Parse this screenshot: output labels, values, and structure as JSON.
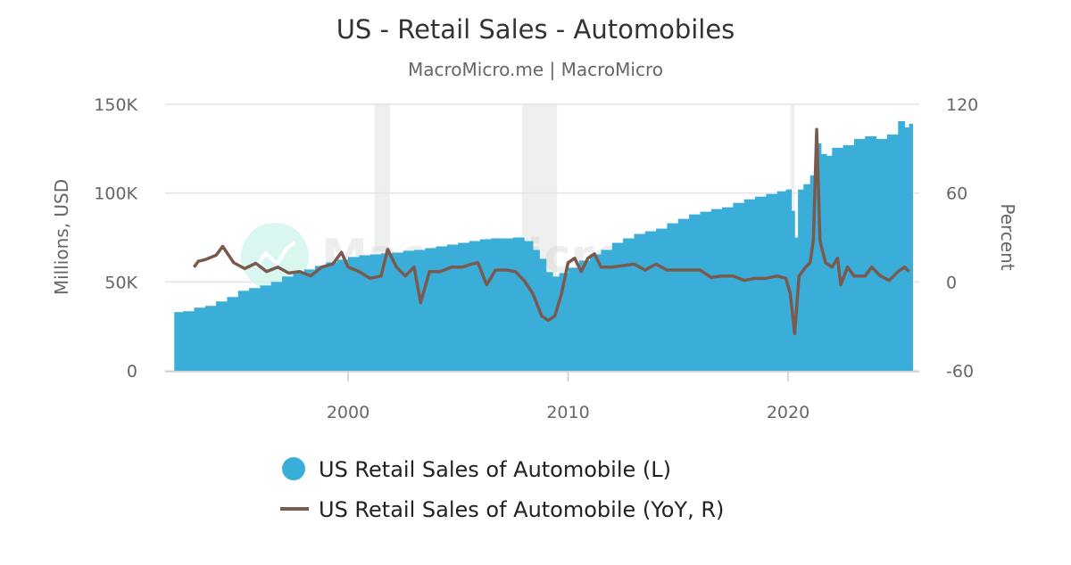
{
  "chart_data": {
    "type": "bar+line",
    "title": "US - Retail Sales - Automobiles",
    "subtitle": "MacroMicro.me | MacroMicro",
    "watermark": "MacroMicro",
    "ylabel_left": "Millions, USD",
    "ylabel_right": "Percent",
    "xlim": [
      1991.8,
      2025.9
    ],
    "ylim_left": [
      0,
      150000
    ],
    "ylim_right": [
      -60,
      120
    ],
    "x_ticks": [
      {
        "v": 2000,
        "label": "2000"
      },
      {
        "v": 2010,
        "label": "2010"
      },
      {
        "v": 2020,
        "label": "2020"
      }
    ],
    "y_ticks_left": [
      {
        "v": 0,
        "label": "0"
      },
      {
        "v": 50000,
        "label": "50K"
      },
      {
        "v": 100000,
        "label": "100K"
      },
      {
        "v": 150000,
        "label": "150K"
      }
    ],
    "y_ticks_right": [
      {
        "v": -60,
        "label": "-60"
      },
      {
        "v": 0,
        "label": "0"
      },
      {
        "v": 60,
        "label": "60"
      },
      {
        "v": 120,
        "label": "120"
      }
    ],
    "grid": true,
    "legend_position": "bottom",
    "recessions": [
      [
        2001.2,
        2001.9
      ],
      [
        2007.9,
        2009.5
      ],
      [
        2020.1,
        2020.3
      ]
    ],
    "colors": {
      "bars": "#3aaed8",
      "line": "#7a5a4e",
      "recession": "#eef0ef",
      "watermark_circle": "#d3f5ee"
    },
    "series": [
      {
        "name": "US Retail Sales of Automobile (L)",
        "kind": "bar",
        "axis": "left",
        "points": [
          [
            1992.1,
            33000
          ],
          [
            1992.5,
            33500
          ],
          [
            1993.0,
            35500
          ],
          [
            1993.5,
            36500
          ],
          [
            1994.0,
            39000
          ],
          [
            1994.5,
            41500
          ],
          [
            1995.0,
            45000
          ],
          [
            1995.5,
            46500
          ],
          [
            1996.0,
            48000
          ],
          [
            1996.5,
            50000
          ],
          [
            1997.0,
            53000
          ],
          [
            1997.5,
            55000
          ],
          [
            1998.0,
            57000
          ],
          [
            1998.5,
            59000
          ],
          [
            1999.0,
            61000
          ],
          [
            1999.5,
            62500
          ],
          [
            2000.0,
            64000
          ],
          [
            2000.5,
            65000
          ],
          [
            2001.0,
            65500
          ],
          [
            2001.5,
            66000
          ],
          [
            2002.0,
            66500
          ],
          [
            2002.5,
            67500
          ],
          [
            2003.0,
            68000
          ],
          [
            2003.5,
            69000
          ],
          [
            2004.0,
            70000
          ],
          [
            2004.5,
            71000
          ],
          [
            2005.0,
            72000
          ],
          [
            2005.5,
            73000
          ],
          [
            2006.0,
            74000
          ],
          [
            2006.5,
            74500
          ],
          [
            2007.0,
            74500
          ],
          [
            2007.5,
            75000
          ],
          [
            2008.0,
            73000
          ],
          [
            2008.4,
            68000
          ],
          [
            2008.7,
            63000
          ],
          [
            2009.0,
            55500
          ],
          [
            2009.3,
            53000
          ],
          [
            2009.6,
            55000
          ],
          [
            2010.0,
            58000
          ],
          [
            2010.5,
            62000
          ],
          [
            2011.0,
            65500
          ],
          [
            2011.5,
            68000
          ],
          [
            2012.0,
            72000
          ],
          [
            2012.5,
            74500
          ],
          [
            2013.0,
            77000
          ],
          [
            2013.5,
            78500
          ],
          [
            2014.0,
            80000
          ],
          [
            2014.5,
            83000
          ],
          [
            2015.0,
            85500
          ],
          [
            2015.5,
            88000
          ],
          [
            2016.0,
            89500
          ],
          [
            2016.5,
            91000
          ],
          [
            2017.0,
            92000
          ],
          [
            2017.5,
            94500
          ],
          [
            2018.0,
            96500
          ],
          [
            2018.5,
            98000
          ],
          [
            2019.0,
            99500
          ],
          [
            2019.5,
            101000
          ],
          [
            2019.9,
            102000
          ],
          [
            2020.15,
            90000
          ],
          [
            2020.3,
            75000
          ],
          [
            2020.45,
            102000
          ],
          [
            2020.7,
            105000
          ],
          [
            2021.0,
            110000
          ],
          [
            2021.25,
            128000
          ],
          [
            2021.5,
            122000
          ],
          [
            2021.75,
            121000
          ],
          [
            2022.0,
            125500
          ],
          [
            2022.5,
            127000
          ],
          [
            2023.0,
            130500
          ],
          [
            2023.5,
            132000
          ],
          [
            2024.0,
            130500
          ],
          [
            2024.5,
            133000
          ],
          [
            2025.0,
            140500
          ],
          [
            2025.3,
            137000
          ],
          [
            2025.5,
            139000
          ]
        ]
      },
      {
        "name": "US Retail Sales of Automobile (YoY, R)",
        "kind": "line",
        "axis": "right",
        "points": [
          [
            1993.0,
            10
          ],
          [
            1993.2,
            14
          ],
          [
            1993.5,
            15
          ],
          [
            1994.0,
            18
          ],
          [
            1994.3,
            24
          ],
          [
            1994.8,
            13
          ],
          [
            1995.3,
            9
          ],
          [
            1995.8,
            12.6
          ],
          [
            1996.3,
            7
          ],
          [
            1996.8,
            10
          ],
          [
            1997.3,
            6
          ],
          [
            1997.8,
            7
          ],
          [
            1998.3,
            4
          ],
          [
            1998.8,
            10
          ],
          [
            1999.3,
            12
          ],
          [
            1999.7,
            20
          ],
          [
            2000.0,
            10
          ],
          [
            2000.5,
            7
          ],
          [
            2001.0,
            2.4
          ],
          [
            2001.5,
            4
          ],
          [
            2001.8,
            22
          ],
          [
            2002.2,
            10
          ],
          [
            2002.6,
            4
          ],
          [
            2003.0,
            10
          ],
          [
            2003.3,
            -14
          ],
          [
            2003.7,
            7
          ],
          [
            2004.2,
            7
          ],
          [
            2004.7,
            10
          ],
          [
            2005.2,
            10
          ],
          [
            2005.6,
            12
          ],
          [
            2005.9,
            13
          ],
          [
            2006.3,
            -2
          ],
          [
            2006.7,
            8
          ],
          [
            2007.2,
            8
          ],
          [
            2007.6,
            7
          ],
          [
            2008.0,
            1
          ],
          [
            2008.4,
            -8
          ],
          [
            2008.8,
            -23
          ],
          [
            2009.1,
            -26
          ],
          [
            2009.4,
            -23
          ],
          [
            2009.7,
            -8
          ],
          [
            2010.0,
            13
          ],
          [
            2010.3,
            16
          ],
          [
            2010.6,
            7
          ],
          [
            2010.9,
            16
          ],
          [
            2011.2,
            19
          ],
          [
            2011.5,
            10
          ],
          [
            2012.0,
            10
          ],
          [
            2012.5,
            11
          ],
          [
            2013.0,
            12
          ],
          [
            2013.5,
            8
          ],
          [
            2014.0,
            12
          ],
          [
            2014.5,
            8
          ],
          [
            2015.0,
            8
          ],
          [
            2015.5,
            8
          ],
          [
            2016.0,
            8
          ],
          [
            2016.5,
            3
          ],
          [
            2017.0,
            4
          ],
          [
            2017.5,
            4
          ],
          [
            2018.0,
            1
          ],
          [
            2018.5,
            2.4
          ],
          [
            2019.0,
            2.4
          ],
          [
            2019.5,
            4
          ],
          [
            2019.9,
            2.4
          ],
          [
            2020.1,
            -8
          ],
          [
            2020.3,
            -35
          ],
          [
            2020.5,
            4
          ],
          [
            2020.8,
            10
          ],
          [
            2021.0,
            13
          ],
          [
            2021.15,
            28
          ],
          [
            2021.3,
            103
          ],
          [
            2021.45,
            28
          ],
          [
            2021.7,
            13
          ],
          [
            2022.0,
            10
          ],
          [
            2022.25,
            16
          ],
          [
            2022.4,
            -2
          ],
          [
            2022.7,
            10
          ],
          [
            2023.0,
            4
          ],
          [
            2023.5,
            4
          ],
          [
            2023.8,
            10
          ],
          [
            2024.2,
            4
          ],
          [
            2024.6,
            1
          ],
          [
            2025.0,
            7
          ],
          [
            2025.3,
            10
          ],
          [
            2025.5,
            7
          ]
        ]
      }
    ]
  }
}
